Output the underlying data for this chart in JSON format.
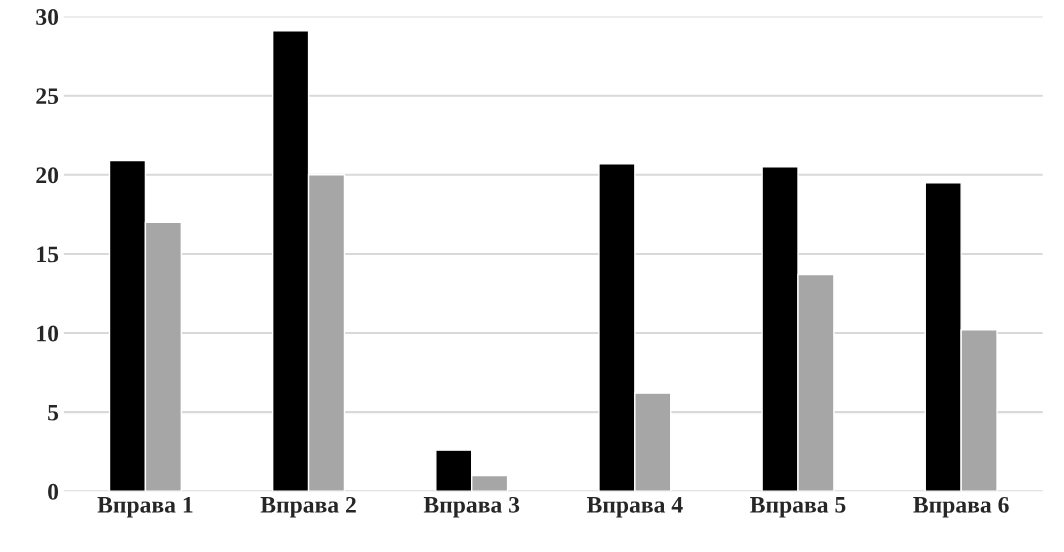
{
  "chart_data": {
    "type": "bar",
    "categories": [
      "Вправа 1",
      "Вправа 2",
      "Вправа 3",
      "Вправа 4",
      "Вправа 5",
      "Вправа 6"
    ],
    "series": [
      {
        "color": "#000000",
        "values": [
          20.9,
          29.1,
          2.6,
          20.7,
          20.5,
          19.5
        ]
      },
      {
        "color": "#a6a6a6",
        "values": [
          17.0,
          20.0,
          1.0,
          6.2,
          13.7,
          10.2
        ]
      }
    ],
    "ylim": [
      0,
      30
    ],
    "yticks": [
      0,
      5,
      10,
      15,
      20,
      25,
      30
    ],
    "grid": "y"
  }
}
